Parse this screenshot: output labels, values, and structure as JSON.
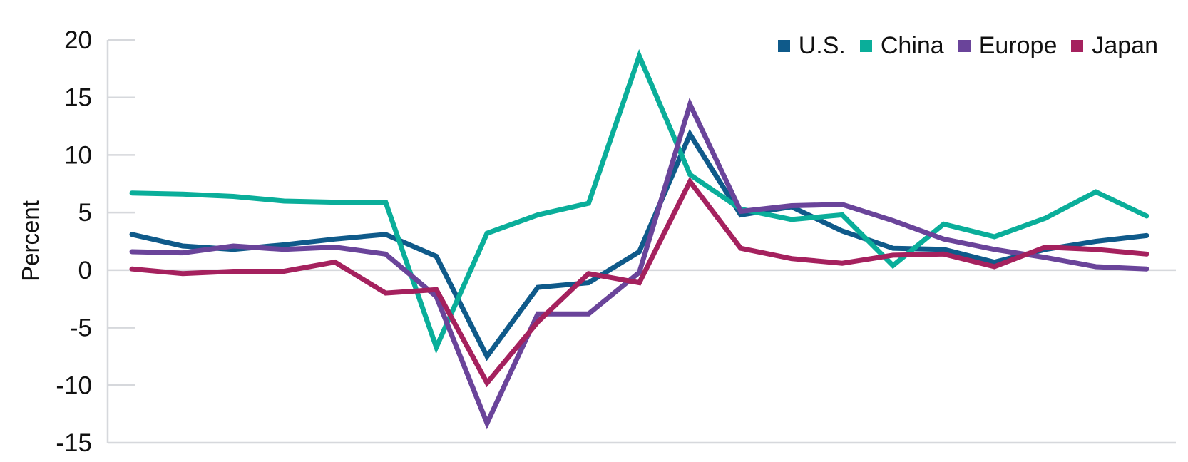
{
  "chart_data": {
    "type": "line",
    "title": "",
    "xlabel": "",
    "ylabel": "Percent",
    "ylim": [
      -15,
      20
    ],
    "yticks": [
      20,
      15,
      10,
      5,
      0,
      -5,
      -10,
      -15
    ],
    "ytick_labels": [
      "20",
      "15",
      "10",
      "5",
      "0",
      "-5",
      "-10",
      "-15"
    ],
    "grid": false,
    "zero_line": true,
    "legend_position": "top-right",
    "x": [
      0,
      1,
      2,
      3,
      4,
      5,
      6,
      7,
      8,
      9,
      10,
      11,
      12,
      13,
      14,
      15,
      16,
      17,
      18,
      19,
      20
    ],
    "series": [
      {
        "name": "U.S.",
        "color": "#0f5a8a",
        "values": [
          3.1,
          2.1,
          1.8,
          2.2,
          2.7,
          3.1,
          1.2,
          -7.5,
          -1.5,
          -1.1,
          1.6,
          11.8,
          4.8,
          5.5,
          3.4,
          1.9,
          1.8,
          0.7,
          1.8,
          2.5,
          3.0
        ]
      },
      {
        "name": "China",
        "color": "#0aae9a",
        "values": [
          6.7,
          6.6,
          6.4,
          6.0,
          5.9,
          5.9,
          -6.7,
          3.2,
          4.8,
          5.8,
          18.6,
          8.3,
          5.3,
          4.4,
          4.8,
          0.4,
          4.0,
          2.9,
          4.5,
          6.8,
          4.7
        ]
      },
      {
        "name": "Europe",
        "color": "#6a449a",
        "values": [
          1.6,
          1.5,
          2.1,
          1.8,
          2.0,
          1.4,
          -2.3,
          -13.3,
          -3.8,
          -3.8,
          -0.2,
          14.4,
          5.1,
          5.6,
          5.7,
          4.3,
          2.7,
          1.8,
          1.1,
          0.3,
          0.1
        ]
      },
      {
        "name": "Japan",
        "color": "#a5215e",
        "values": [
          0.1,
          -0.3,
          -0.1,
          -0.1,
          0.7,
          -2.0,
          -1.7,
          -9.8,
          -4.5,
          -0.3,
          -1.1,
          7.7,
          1.9,
          1.0,
          0.6,
          1.3,
          1.4,
          0.3,
          2.0,
          1.8,
          1.4
        ]
      }
    ]
  },
  "axis_color": "#d6d8dc",
  "legend": {
    "items": [
      {
        "label": "U.S.",
        "color": "#0f5a8a"
      },
      {
        "label": "China",
        "color": "#0aae9a"
      },
      {
        "label": "Europe",
        "color": "#6a449a"
      },
      {
        "label": "Japan",
        "color": "#a5215e"
      }
    ]
  }
}
